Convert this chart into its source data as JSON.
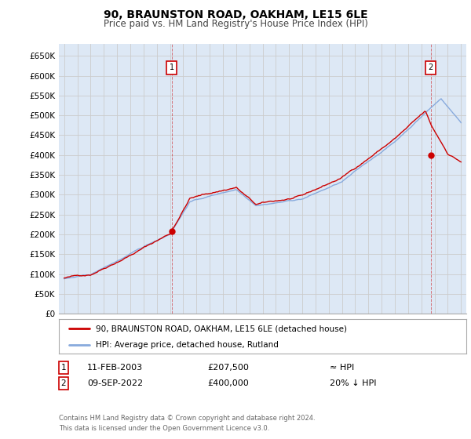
{
  "title": "90, BRAUNSTON ROAD, OAKHAM, LE15 6LE",
  "subtitle": "Price paid vs. HM Land Registry's House Price Index (HPI)",
  "ylabel_ticks": [
    "£0",
    "£50K",
    "£100K",
    "£150K",
    "£200K",
    "£250K",
    "£300K",
    "£350K",
    "£400K",
    "£450K",
    "£500K",
    "£550K",
    "£600K",
    "£650K"
  ],
  "ytick_vals": [
    0,
    50000,
    100000,
    150000,
    200000,
    250000,
    300000,
    350000,
    400000,
    450000,
    500000,
    550000,
    600000,
    650000
  ],
  "ylim": [
    0,
    680000
  ],
  "hpi_color": "#88aadd",
  "price_color": "#cc0000",
  "grid_color": "#cccccc",
  "background_color": "#dde8f5",
  "legend_items": [
    {
      "label": "90, BRAUNSTON ROAD, OAKHAM, LE15 6LE (detached house)",
      "color": "#cc0000"
    },
    {
      "label": "HPI: Average price, detached house, Rutland",
      "color": "#88aadd"
    }
  ],
  "annotation1": {
    "num": "1",
    "date": "11-FEB-2003",
    "price": "£207,500",
    "hpi": "≈ HPI"
  },
  "annotation2": {
    "num": "2",
    "date": "09-SEP-2022",
    "price": "£400,000",
    "hpi": "20% ↓ HPI"
  },
  "sale1_year": 2003.12,
  "sale1_price": 207500,
  "sale2_year": 2022.71,
  "sale2_price": 400000,
  "footer": "Contains HM Land Registry data © Crown copyright and database right 2024.\nThis data is licensed under the Open Government Licence v3.0.",
  "x_start_year": 1995,
  "x_end_year": 2025
}
